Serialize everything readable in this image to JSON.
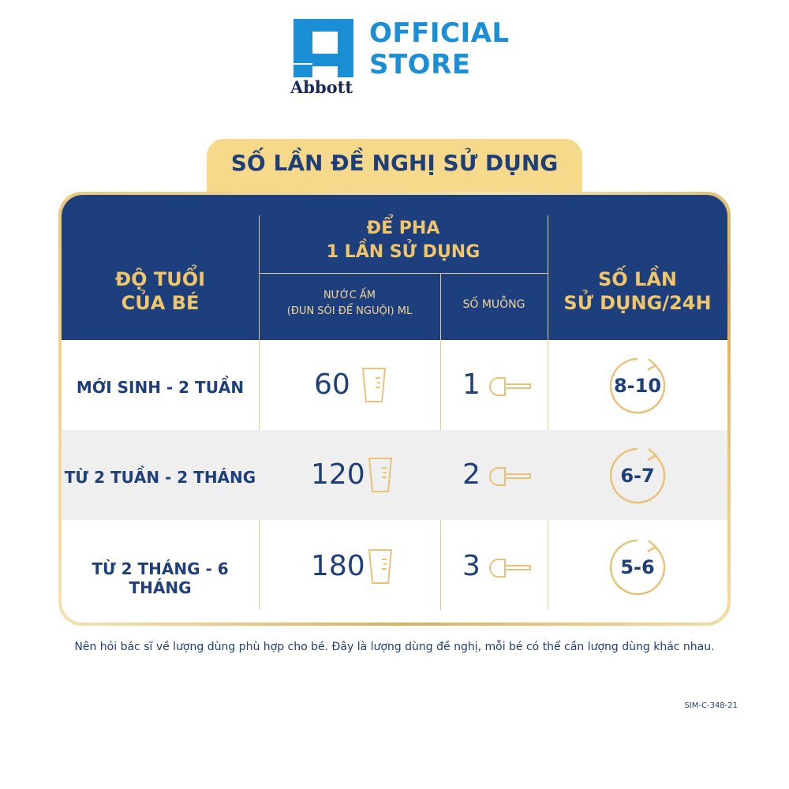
{
  "header": {
    "brand": "Abbott",
    "store_line1": "OFFICIAL",
    "store_line2": "STORE",
    "logo_icon": "abbott-logo-icon",
    "brand_color": "#1a8fd6"
  },
  "title": "SỐ LẦN ĐỀ NGHỊ SỬ DỤNG",
  "table": {
    "col_age_line1": "ĐỘ TUỔI",
    "col_age_line2": "CỦA BÉ",
    "col_mix_line1": "ĐỂ PHA",
    "col_mix_line2": "1 LẦN SỬ DỤNG",
    "col_water_line1": "NƯỚC ẤM",
    "col_water_line2": "(ĐUN SÔI ĐỂ NGUỘI) ML",
    "col_spoon": "SỐ MUỖNG",
    "col_times_line1": "SỐ LẦN",
    "col_times_line2": "SỬ DỤNG/24H",
    "rows": [
      {
        "age": "MỚI SINH - 2 TUẦN",
        "water": "60",
        "spoons": "1",
        "times": "8-10"
      },
      {
        "age": "TỪ 2 TUẦN - 2 THÁNG",
        "water": "120",
        "spoons": "2",
        "times": "6-7"
      },
      {
        "age": "TỪ 2 THÁNG - 6 THÁNG",
        "water": "180",
        "spoons": "3",
        "times": "5-6"
      }
    ],
    "icons": {
      "water": "measuring-cup-icon",
      "spoon": "scoop-icon",
      "times": "cycle-arrow-icon"
    },
    "header_color": "#1e3f7d",
    "accent_color": "#f0c66a"
  },
  "note": "Nên hỏi bác sĩ về lượng dùng phù hợp cho bé. Đây là lượng dùng đề nghị, mỗi bé có thể cần lượng dùng khác nhau.",
  "code": "SIM-C-348-21"
}
